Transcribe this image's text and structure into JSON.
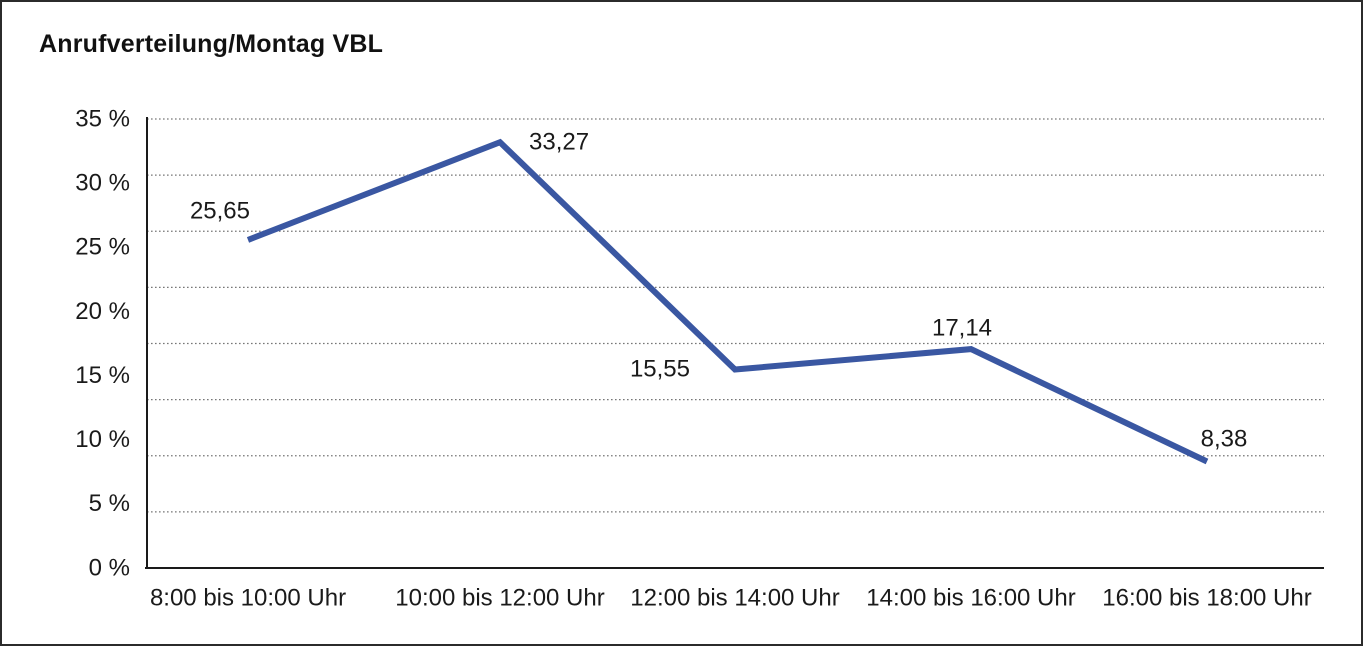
{
  "chart_data": {
    "type": "line",
    "title": "Anrufverteilung/Montag VBL",
    "categories": [
      "8:00 bis 10:00 Uhr",
      "10:00 bis 12:00 Uhr",
      "12:00 bis 14:00 Uhr",
      "14:00 bis 16:00 Uhr",
      "16:00 bis 18:00 Uhr"
    ],
    "values": [
      25.65,
      33.27,
      15.55,
      17.14,
      8.38
    ],
    "point_labels": [
      "25,65",
      "33,27",
      "15,55",
      "17,14",
      "8,38"
    ],
    "y_tick_labels": [
      "35 %",
      "30 %",
      "25 %",
      "20 %",
      "15 %",
      "10 %",
      "5 %",
      "0 %"
    ],
    "ylim": [
      0,
      35
    ],
    "xlabel": "",
    "ylabel": "",
    "legend": "none",
    "grid": "horizontal-dotted",
    "line_color": "#3A57A2",
    "axis_color": "#1a1a1a",
    "grid_color": "#777777",
    "text_color": "#1a1a1a",
    "background_color": "#ffffff"
  }
}
